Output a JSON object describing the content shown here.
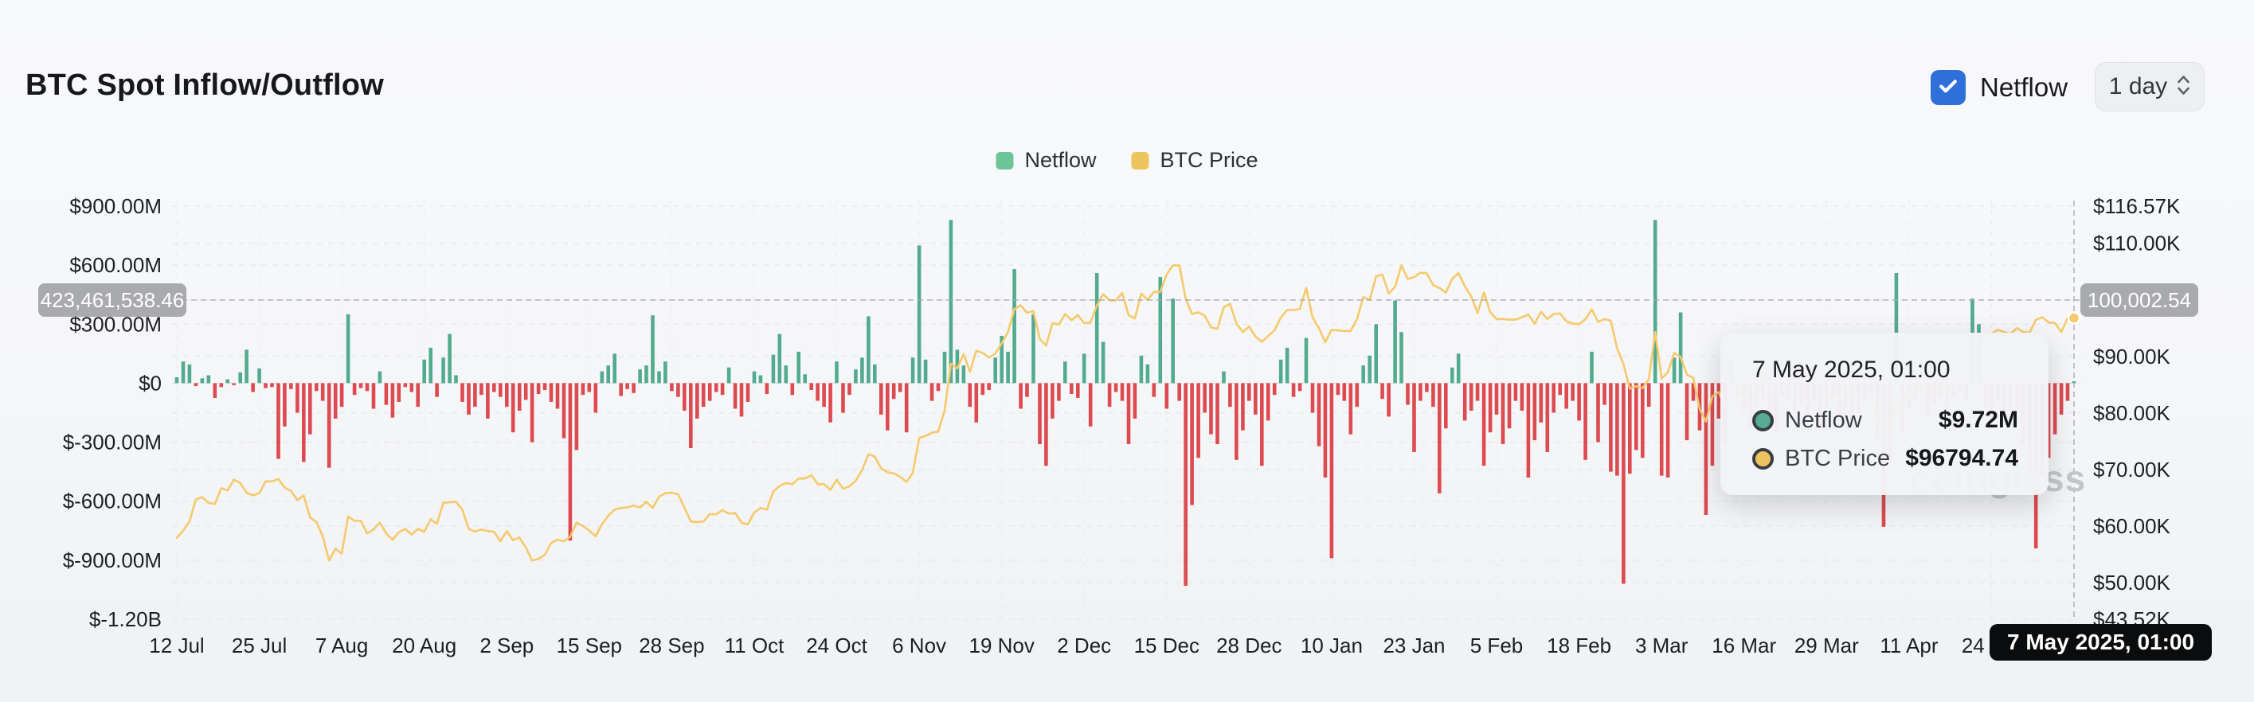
{
  "header": {
    "title": "BTC Spot Inflow/Outflow",
    "netflow_toggle": {
      "label": "Netflow",
      "checked": true
    },
    "interval_select": {
      "value": "1 day"
    }
  },
  "legend": {
    "items": [
      {
        "label": "Netflow",
        "color": "#6cc597"
      },
      {
        "label": "BTC Price",
        "color": "#eec45e"
      }
    ]
  },
  "crosshair": {
    "left_axis_badge": "423,461,538.46",
    "right_axis_badge": "100,002.54"
  },
  "tooltip": {
    "title": "7 May 2025, 01:00",
    "rows": [
      {
        "label": "Netflow",
        "value": "$9.72M",
        "marker_color": "#57ab92"
      },
      {
        "label": "BTC Price",
        "value": "$96794.74",
        "marker_color": "#edc45f"
      }
    ]
  },
  "x_axis_tooltip": "7 May 2025, 01:00",
  "watermark": "coinglass",
  "colors": {
    "inflow_bar": "#52ab8e",
    "outflow_bar": "#dd4a50",
    "price_line": "#f5c96c",
    "checkbox_blue": "#2f6fd9"
  },
  "axes": {
    "left": {
      "ticks": [
        {
          "v": 900,
          "label": "$900.00M"
        },
        {
          "v": 600,
          "label": "$600.00M"
        },
        {
          "v": 300,
          "label": "$300.00M"
        },
        {
          "v": 0,
          "label": "$0"
        },
        {
          "v": -300,
          "label": "$-300.00M"
        },
        {
          "v": -600,
          "label": "$-600.00M"
        },
        {
          "v": -900,
          "label": "$-900.00M"
        },
        {
          "v": -1200,
          "label": "$-1.20B"
        }
      ]
    },
    "right": {
      "ticks": [
        {
          "v": 116.57,
          "label": "$116.57K"
        },
        {
          "v": 110,
          "label": "$110.00K"
        },
        {
          "v": 100,
          "label": "$100.00K"
        },
        {
          "v": 90,
          "label": "$90.00K"
        },
        {
          "v": 80,
          "label": "$80.00K"
        },
        {
          "v": 70,
          "label": "$70.00K"
        },
        {
          "v": 60,
          "label": "$60.00K"
        },
        {
          "v": 50,
          "label": "$50.00K"
        },
        {
          "v": 43.52,
          "label": "$43.52K"
        }
      ]
    }
  },
  "chart_data": {
    "type": "bar+line",
    "title": "BTC Spot Inflow/Outflow",
    "interval": "1 day",
    "x_range": [
      "12 Jul 2024",
      "7 May 2025, 01:00"
    ],
    "x_tick_every_days": 13,
    "x_tick_labels": [
      "12 Jul",
      "25 Jul",
      "7 Aug",
      "20 Aug",
      "2 Sep",
      "15 Sep",
      "28 Sep",
      "11 Oct",
      "24 Oct",
      "6 Nov",
      "19 Nov",
      "2 Dec",
      "15 Dec",
      "28 Dec",
      "10 Jan",
      "23 Jan",
      "5 Feb",
      "18 Feb",
      "3 Mar",
      "16 Mar",
      "29 Mar",
      "11 Apr",
      "24 Apr"
    ],
    "left_axis_range_millions": [
      -1200,
      900
    ],
    "right_axis_range_thousands": [
      43.52,
      116.57
    ],
    "crosshair": {
      "index": 299,
      "netflow_m": 9.72,
      "price_usd": 96794.74
    },
    "series": [
      {
        "name": "Netflow",
        "type": "bar",
        "unit": "USD millions",
        "values": [
          30,
          110,
          95,
          -15,
          25,
          40,
          -75,
          -20,
          20,
          -10,
          55,
          170,
          -45,
          75,
          -25,
          -20,
          -385,
          -220,
          -30,
          -150,
          -400,
          -260,
          -40,
          -90,
          -430,
          -180,
          -120,
          350,
          -60,
          -25,
          -40,
          -130,
          60,
          -110,
          -175,
          -95,
          -20,
          -45,
          -120,
          120,
          180,
          -70,
          130,
          250,
          40,
          -95,
          -160,
          -120,
          -60,
          -180,
          -45,
          -70,
          -120,
          -250,
          -140,
          -85,
          -300,
          -55,
          -35,
          -95,
          -130,
          -280,
          -800,
          -340,
          -60,
          -45,
          -150,
          60,
          90,
          150,
          -65,
          -30,
          -50,
          70,
          90,
          345,
          60,
          110,
          -40,
          -70,
          -140,
          -330,
          -180,
          -120,
          -90,
          -45,
          -60,
          80,
          -130,
          -170,
          -95,
          60,
          40,
          -55,
          145,
          250,
          90,
          -60,
          160,
          45,
          -35,
          -90,
          -120,
          -200,
          110,
          -150,
          -60,
          70,
          130,
          340,
          95,
          -160,
          -240,
          -80,
          -45,
          -250,
          130,
          700,
          120,
          -90,
          -40,
          160,
          830,
          170,
          90,
          -120,
          -200,
          -60,
          -35,
          130,
          240,
          160,
          580,
          -130,
          -70,
          350,
          -310,
          -420,
          -180,
          -90,
          110,
          -55,
          -75,
          150,
          -220,
          560,
          210,
          -120,
          -45,
          -90,
          -310,
          -180,
          140,
          95,
          -70,
          540,
          -130,
          430,
          -90,
          -1030,
          -620,
          -380,
          -150,
          -260,
          -310,
          60,
          -120,
          -390,
          -240,
          -90,
          -160,
          -420,
          -190,
          -60,
          120,
          180,
          -70,
          -40,
          230,
          -150,
          -320,
          -480,
          -890,
          -60,
          -90,
          -260,
          -120,
          90,
          140,
          300,
          -80,
          -170,
          420,
          260,
          -110,
          -350,
          -90,
          -45,
          -120,
          -560,
          -230,
          80,
          150,
          -190,
          -140,
          -90,
          -420,
          -250,
          -160,
          -310,
          -230,
          -90,
          -140,
          -480,
          -290,
          -200,
          -350,
          -150,
          -60,
          -130,
          -90,
          -190,
          -390,
          160,
          -300,
          -110,
          -450,
          -470,
          -1020,
          -460,
          -340,
          -380,
          -120,
          830,
          -470,
          -480,
          130,
          360,
          -290,
          -90,
          -240,
          -670,
          -420,
          -180,
          -310,
          120,
          -70,
          -150,
          -230,
          -120,
          -90,
          -180,
          -260,
          -60,
          -90,
          -140,
          -110,
          -160,
          -90,
          -230,
          -130,
          -70,
          -180,
          -120,
          -200,
          -150,
          -90,
          -60,
          -280,
          -730,
          -390,
          560,
          -260,
          -130,
          -90,
          -50,
          -160,
          -110,
          -70,
          -140,
          -60,
          -40,
          -90,
          430,
          300,
          -120,
          -180,
          -90,
          -150,
          -200,
          -130,
          -310,
          -450,
          -840,
          -470,
          -380,
          -260,
          -160,
          -90,
          9.72
        ]
      },
      {
        "name": "BTC Price",
        "type": "line",
        "unit": "USD thousands",
        "values": [
          57.9,
          59.2,
          60.8,
          64.7,
          65.1,
          64.1,
          63.9,
          66.7,
          66.3,
          68.2,
          67.6,
          65.9,
          65.4,
          65.8,
          67.9,
          67.9,
          68.3,
          66.8,
          66.2,
          64.6,
          65.4,
          61.5,
          60.7,
          58.2,
          53.9,
          56.0,
          55.1,
          61.7,
          60.9,
          60.9,
          58.7,
          59.4,
          60.6,
          58.7,
          57.6,
          58.9,
          59.5,
          58.5,
          59.5,
          59.0,
          61.2,
          60.4,
          64.1,
          64.2,
          64.3,
          62.9,
          59.5,
          59.0,
          59.4,
          59.1,
          59.0,
          57.3,
          59.1,
          57.5,
          58.0,
          56.2,
          53.9,
          54.2,
          54.9,
          57.0,
          57.6,
          57.3,
          58.1,
          60.6,
          60.0,
          59.2,
          58.2,
          60.3,
          61.8,
          62.9,
          63.2,
          63.3,
          63.6,
          63.3,
          64.3,
          63.2,
          65.2,
          65.8,
          65.9,
          65.6,
          63.3,
          60.8,
          60.7,
          60.8,
          62.1,
          62.1,
          62.8,
          62.2,
          62.3,
          60.6,
          60.3,
          62.4,
          63.2,
          62.9,
          66.1,
          67.1,
          67.6,
          67.4,
          68.4,
          68.4,
          69.0,
          67.4,
          67.4,
          66.4,
          68.2,
          66.6,
          67.0,
          68.0,
          69.9,
          72.7,
          72.3,
          70.2,
          69.5,
          69.3,
          68.7,
          67.8,
          69.4,
          75.6,
          75.9,
          76.5,
          76.7,
          80.4,
          88.7,
          87.9,
          90.4,
          87.3,
          91.0,
          90.6,
          89.8,
          90.5,
          92.3,
          94.3,
          98.4,
          99.0,
          97.7,
          98.0,
          93.1,
          91.9,
          95.9,
          95.6,
          97.5,
          96.4,
          97.3,
          95.9,
          96.0,
          99.0,
          101.0,
          99.9,
          99.9,
          101.2,
          97.3,
          96.7,
          101.1,
          100.0,
          101.4,
          101.4,
          104.5,
          106.1,
          106.1,
          100.2,
          97.5,
          97.8,
          97.2,
          95.1,
          94.9,
          98.7,
          99.3,
          95.8,
          94.3,
          95.3,
          93.5,
          92.6,
          93.6,
          94.6,
          96.9,
          98.2,
          98.2,
          98.4,
          102.1,
          96.9,
          95.0,
          92.5,
          94.7,
          94.6,
          94.5,
          94.5,
          96.6,
          100.5,
          100.0,
          104.1,
          104.5,
          101.1,
          102.3,
          106.1,
          103.7,
          104.0,
          104.8,
          104.7,
          102.6,
          102.1,
          101.3,
          103.7,
          104.7,
          102.4,
          100.6,
          97.7,
          101.3,
          97.8,
          96.6,
          96.6,
          96.5,
          96.5,
          96.9,
          97.4,
          95.8,
          97.9,
          96.6,
          97.5,
          97.6,
          96.2,
          95.8,
          95.7,
          96.6,
          98.3,
          96.1,
          96.6,
          96.3,
          91.4,
          88.6,
          84.3,
          84.7,
          84.4,
          86.0,
          94.3,
          86.1,
          87.2,
          90.6,
          89.9,
          86.8,
          86.2,
          80.7,
          78.5,
          82.9,
          83.7,
          81.1,
          84.0,
          84.3,
          82.6,
          84.0,
          82.7,
          86.9,
          84.2,
          84.1,
          83.8,
          85.7,
          87.5,
          87.5,
          86.9,
          87.2,
          84.5,
          82.6,
          82.3,
          82.5,
          85.2,
          82.5,
          83.2,
          83.8,
          83.5,
          78.2,
          79.2,
          76.3,
          82.6,
          79.6,
          83.4,
          85.2,
          83.7,
          84.5,
          83.7,
          84.0,
          84.9,
          84.5,
          85.2,
          85.2,
          87.5,
          93.4,
          93.7,
          94.0,
          94.7,
          94.3,
          94.0,
          95.0,
          94.3,
          94.2,
          96.5,
          96.9,
          96.0,
          95.9,
          94.3,
          96.8,
          96.79
        ]
      }
    ]
  }
}
